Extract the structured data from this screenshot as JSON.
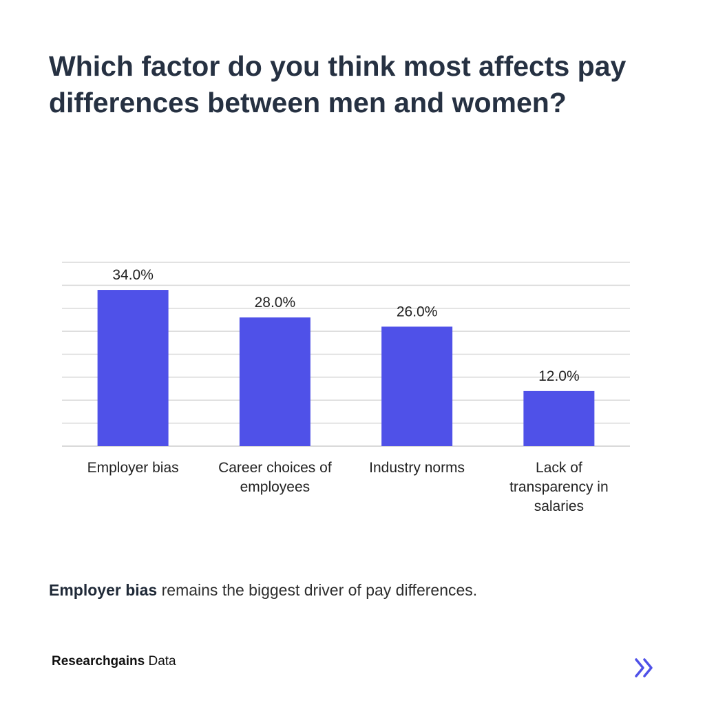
{
  "title": "Which factor do you think most affects pay differences between men and women?",
  "chart_data": {
    "type": "bar",
    "title": "",
    "xlabel": "",
    "ylabel": "",
    "categories": [
      [
        "Employer bias"
      ],
      [
        "Career choices of",
        "employees"
      ],
      [
        "Industry norms"
      ],
      [
        "Lack of",
        "transparency in",
        "salaries"
      ]
    ],
    "values": [
      34.0,
      28.0,
      26.0,
      12.0
    ],
    "value_labels": [
      "34.0%",
      "28.0%",
      "26.0%",
      "12.0%"
    ],
    "ylim": [
      0,
      40
    ],
    "grid": true,
    "bar_color": "#4f51e8"
  },
  "caption": {
    "bold": "Employer bias",
    "rest": " remains the biggest driver of pay differences."
  },
  "brand": {
    "bold": "Researchgains",
    "rest": " Data"
  },
  "next_icon": "chevron-double-right",
  "colors": {
    "accent": "#4f51e8",
    "title": "#263142",
    "grid": "#d9d9d9"
  }
}
